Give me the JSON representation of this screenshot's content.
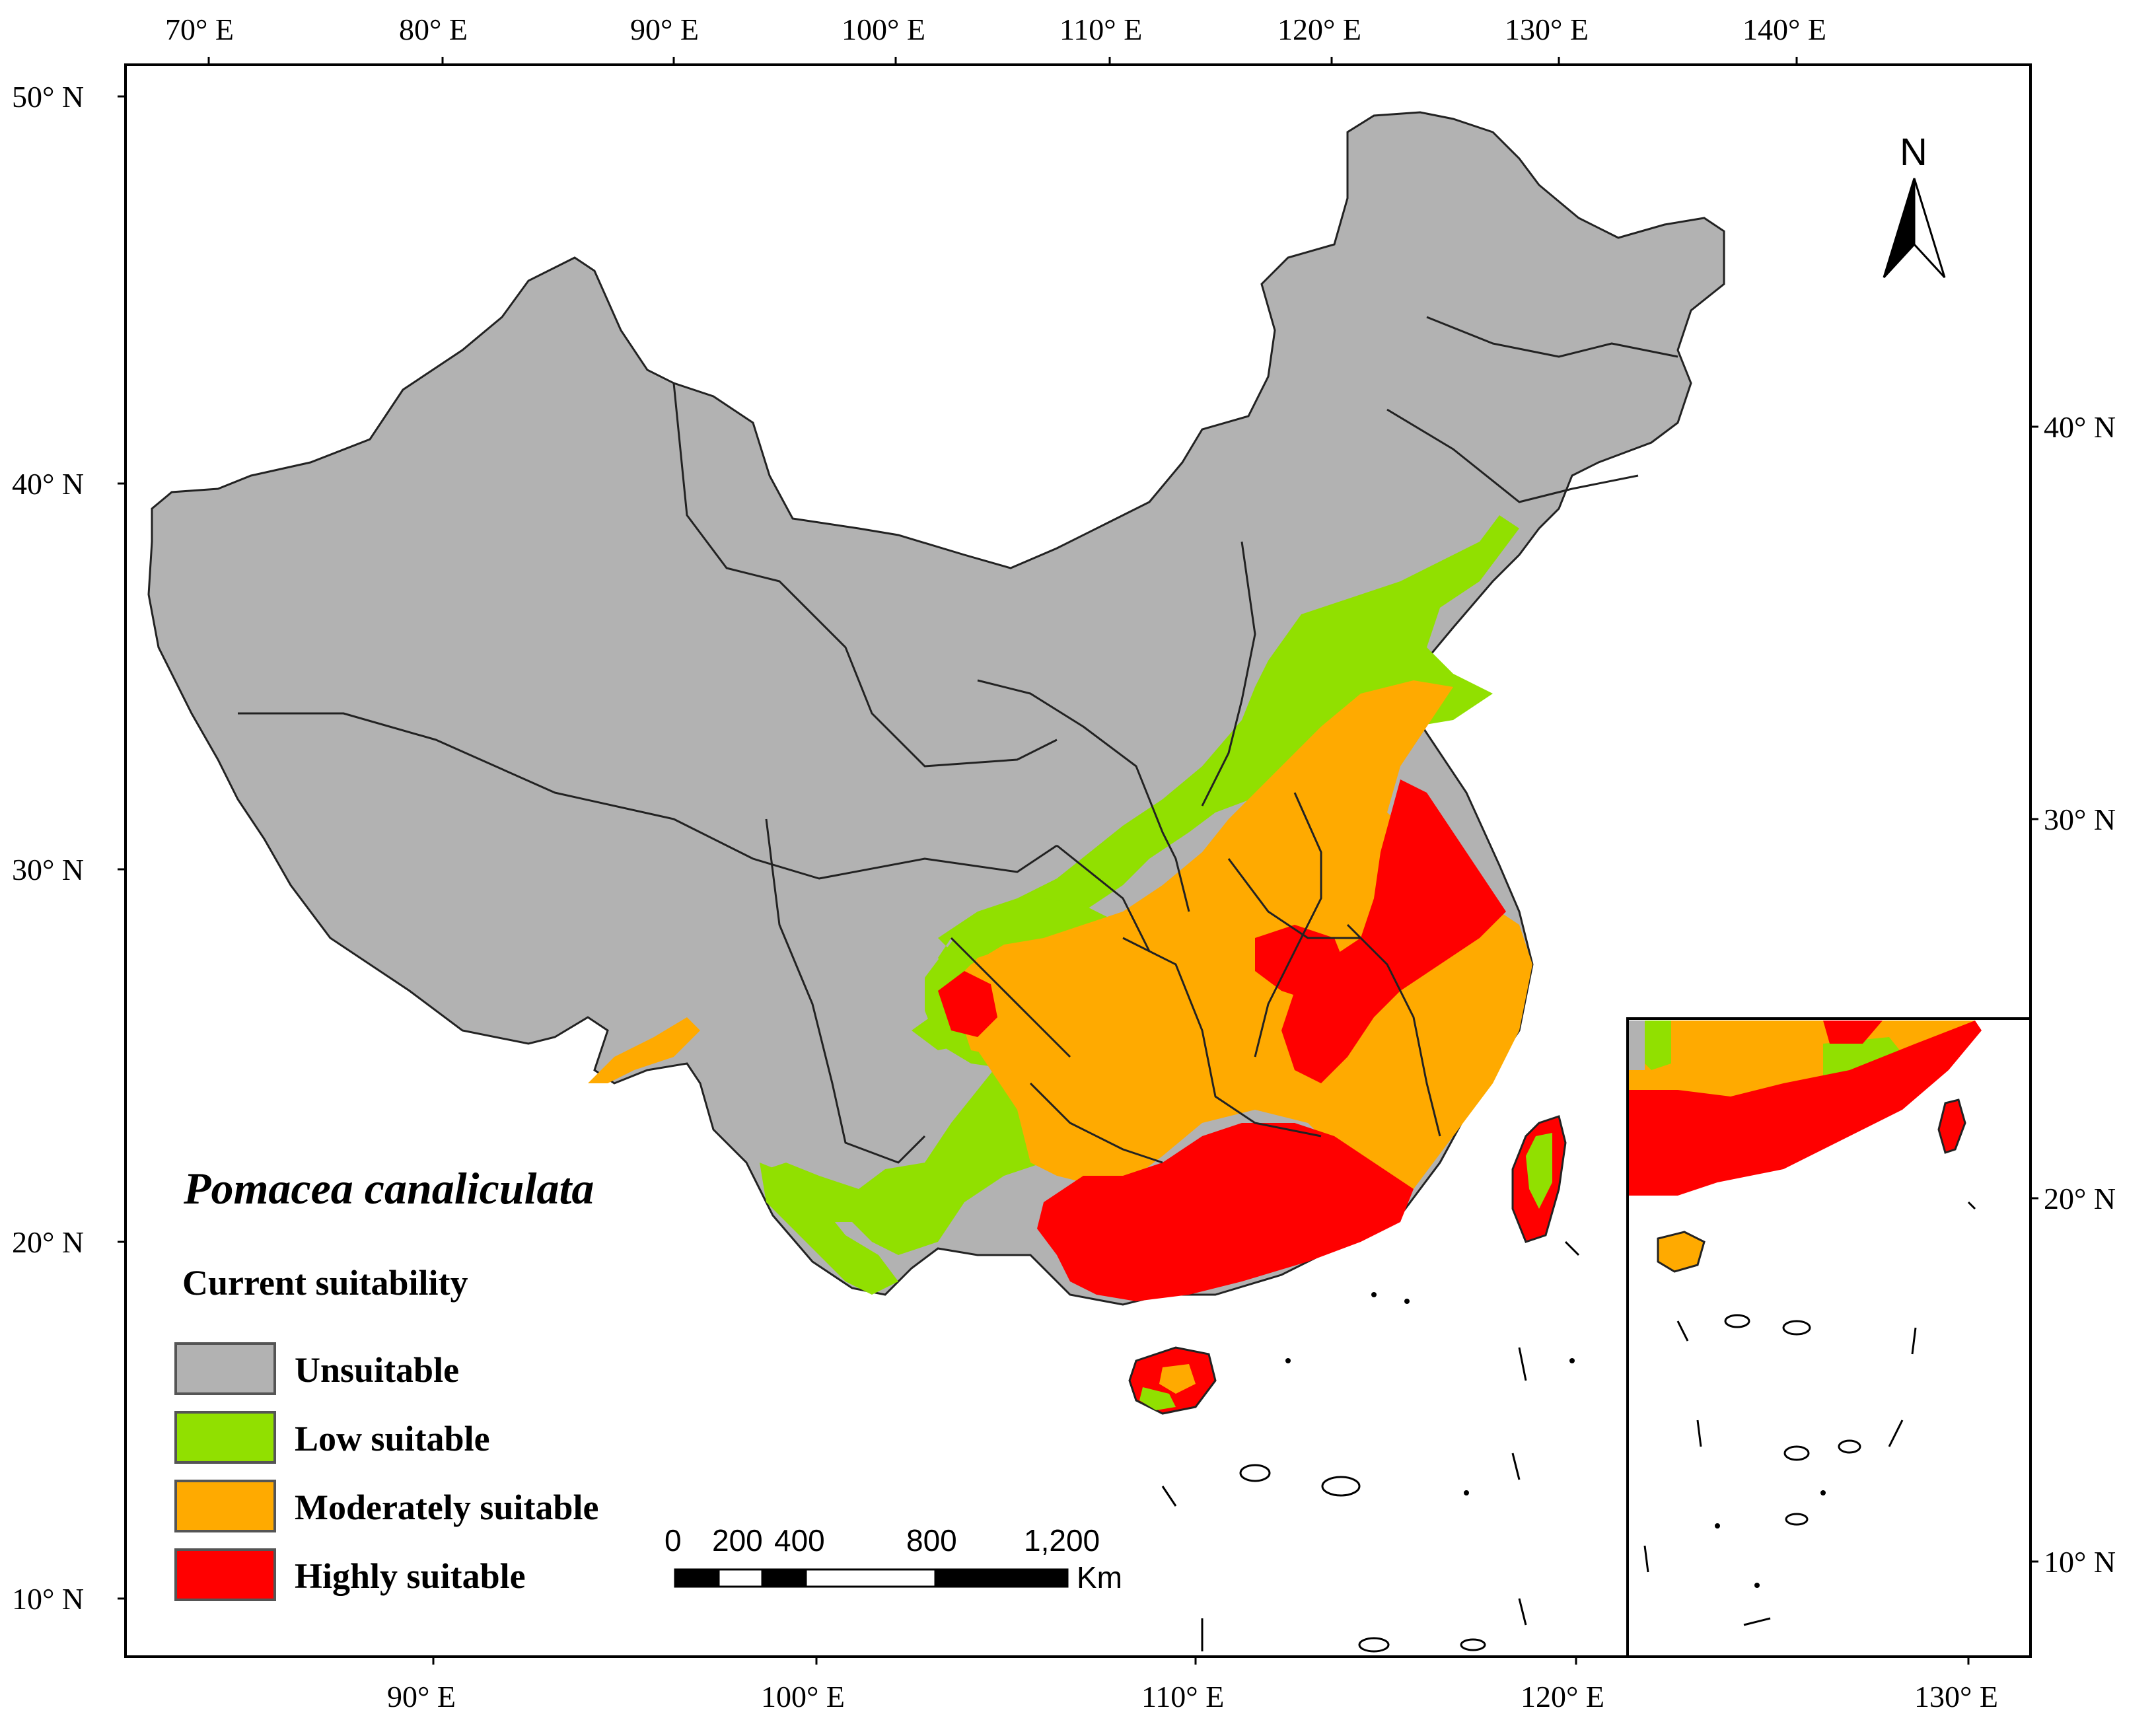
{
  "map": {
    "species": "Pomacea canaliculata",
    "legend_title": "Current suitability",
    "classes": [
      {
        "label": "Unsuitable",
        "color": "#b2b2b2"
      },
      {
        "label": "Low suitable",
        "color": "#91e000"
      },
      {
        "label": "Moderately suitable",
        "color": "#ffaa00"
      },
      {
        "label": "Highly suitable",
        "color": "#ff0000"
      }
    ],
    "top_axis": [
      "70° E",
      "80° E",
      "90° E",
      "100° E",
      "110° E",
      "120° E",
      "130° E",
      "140° E"
    ],
    "bottom_axis": [
      "90° E",
      "100° E",
      "110° E",
      "120° E",
      "130° E"
    ],
    "left_axis": [
      "50° N",
      "40° N",
      "30° N",
      "20° N",
      "10° N"
    ],
    "right_axis": [
      "40° N",
      "30° N",
      "20° N",
      "10° N"
    ],
    "scale_bar": {
      "ticks": [
        "0",
        "200",
        "400",
        "800",
        "1,200"
      ],
      "unit": "Km"
    },
    "north_arrow": "N"
  }
}
